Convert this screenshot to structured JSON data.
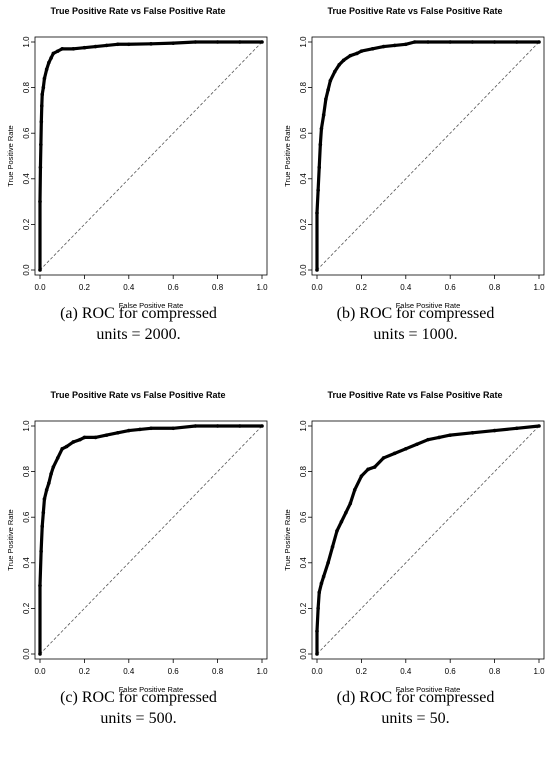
{
  "chart_data": [
    {
      "type": "line",
      "title": "True Positive Rate vs False Positive Rate",
      "xlabel": "False Positive Rate",
      "ylabel": "True Positive Rate",
      "xlim": [
        0,
        1
      ],
      "ylim": [
        0,
        1
      ],
      "xticks": [
        "0.0",
        "0.2",
        "0.4",
        "0.6",
        "0.8",
        "1.0"
      ],
      "yticks": [
        "0.0",
        "0.2",
        "0.4",
        "0.6",
        "0.8",
        "1.0"
      ],
      "caption_line1": "(a) ROC for compressed",
      "caption_line2": "units = 2000.",
      "series": [
        {
          "x": [
            0,
            0,
            0.002,
            0.004,
            0.006,
            0.008,
            0.01,
            0.015,
            0.02,
            0.03,
            0.04,
            0.05,
            0.06,
            0.08,
            0.1,
            0.15,
            0.2,
            0.25,
            0.3,
            0.35,
            0.4,
            0.5,
            0.6,
            0.7,
            0.8,
            0.9,
            1.0
          ],
          "y": [
            0,
            0.3,
            0.45,
            0.55,
            0.65,
            0.72,
            0.77,
            0.8,
            0.84,
            0.88,
            0.91,
            0.93,
            0.95,
            0.96,
            0.97,
            0.97,
            0.975,
            0.98,
            0.985,
            0.99,
            0.99,
            0.992,
            0.995,
            1.0,
            1.0,
            1.0,
            1.0
          ]
        }
      ],
      "diagonal": true
    },
    {
      "type": "line",
      "title": "True Positive Rate vs False Positive Rate",
      "xlabel": "False Positive Rate",
      "ylabel": "True Positive Rate",
      "xlim": [
        0,
        1
      ],
      "ylim": [
        0,
        1
      ],
      "xticks": [
        "0.0",
        "0.2",
        "0.4",
        "0.6",
        "0.8",
        "1.0"
      ],
      "yticks": [
        "0.0",
        "0.2",
        "0.4",
        "0.6",
        "0.8",
        "1.0"
      ],
      "caption_line1": "(b) ROC for compressed",
      "caption_line2": "units = 1000.",
      "series": [
        {
          "x": [
            0,
            0,
            0.005,
            0.01,
            0.015,
            0.02,
            0.03,
            0.04,
            0.05,
            0.06,
            0.08,
            0.1,
            0.12,
            0.15,
            0.18,
            0.2,
            0.25,
            0.3,
            0.35,
            0.4,
            0.44,
            0.5,
            0.6,
            0.7,
            0.8,
            0.9,
            1.0
          ],
          "y": [
            0,
            0.25,
            0.35,
            0.45,
            0.55,
            0.62,
            0.68,
            0.75,
            0.79,
            0.83,
            0.87,
            0.9,
            0.92,
            0.94,
            0.95,
            0.96,
            0.97,
            0.98,
            0.985,
            0.99,
            1.0,
            1.0,
            1.0,
            1.0,
            1.0,
            1.0,
            1.0
          ]
        }
      ],
      "diagonal": true
    },
    {
      "type": "line",
      "title": "True Positive Rate vs False Positive Rate",
      "xlabel": "False Positive Rate",
      "ylabel": "True Positive Rate",
      "xlim": [
        0,
        1
      ],
      "ylim": [
        0,
        1
      ],
      "xticks": [
        "0.0",
        "0.2",
        "0.4",
        "0.6",
        "0.8",
        "1.0"
      ],
      "yticks": [
        "0.0",
        "0.2",
        "0.4",
        "0.6",
        "0.8",
        "1.0"
      ],
      "caption_line1": "(c) ROC for compressed",
      "caption_line2": "units = 500.",
      "series": [
        {
          "x": [
            0,
            0,
            0.005,
            0.01,
            0.015,
            0.02,
            0.03,
            0.04,
            0.05,
            0.06,
            0.08,
            0.1,
            0.12,
            0.15,
            0.18,
            0.2,
            0.25,
            0.3,
            0.35,
            0.4,
            0.45,
            0.5,
            0.6,
            0.7,
            0.8,
            0.9,
            1.0
          ],
          "y": [
            0,
            0.3,
            0.45,
            0.56,
            0.62,
            0.68,
            0.72,
            0.75,
            0.79,
            0.82,
            0.86,
            0.9,
            0.91,
            0.93,
            0.94,
            0.95,
            0.95,
            0.96,
            0.97,
            0.98,
            0.985,
            0.99,
            0.99,
            1.0,
            1.0,
            1.0,
            1.0
          ]
        }
      ],
      "diagonal": true
    },
    {
      "type": "line",
      "title": "True Positive Rate vs False Positive Rate",
      "xlabel": "False Positive Rate",
      "ylabel": "True Positive Rate",
      "xlim": [
        0,
        1
      ],
      "ylim": [
        0,
        1
      ],
      "xticks": [
        "0.0",
        "0.2",
        "0.4",
        "0.6",
        "0.8",
        "1.0"
      ],
      "yticks": [
        "0.0",
        "0.2",
        "0.4",
        "0.6",
        "0.8",
        "1.0"
      ],
      "caption_line1": "(d) ROC for compressed",
      "caption_line2": "units = 50.",
      "series": [
        {
          "x": [
            0,
            0,
            0.005,
            0.01,
            0.02,
            0.03,
            0.05,
            0.07,
            0.09,
            0.11,
            0.13,
            0.15,
            0.17,
            0.2,
            0.23,
            0.26,
            0.3,
            0.35,
            0.4,
            0.45,
            0.5,
            0.55,
            0.6,
            0.7,
            0.8,
            0.9,
            1.0
          ],
          "y": [
            0,
            0.1,
            0.2,
            0.27,
            0.31,
            0.34,
            0.4,
            0.47,
            0.54,
            0.58,
            0.62,
            0.66,
            0.72,
            0.78,
            0.81,
            0.82,
            0.86,
            0.88,
            0.9,
            0.92,
            0.94,
            0.95,
            0.96,
            0.97,
            0.98,
            0.99,
            1.0
          ]
        }
      ],
      "diagonal": true
    }
  ]
}
